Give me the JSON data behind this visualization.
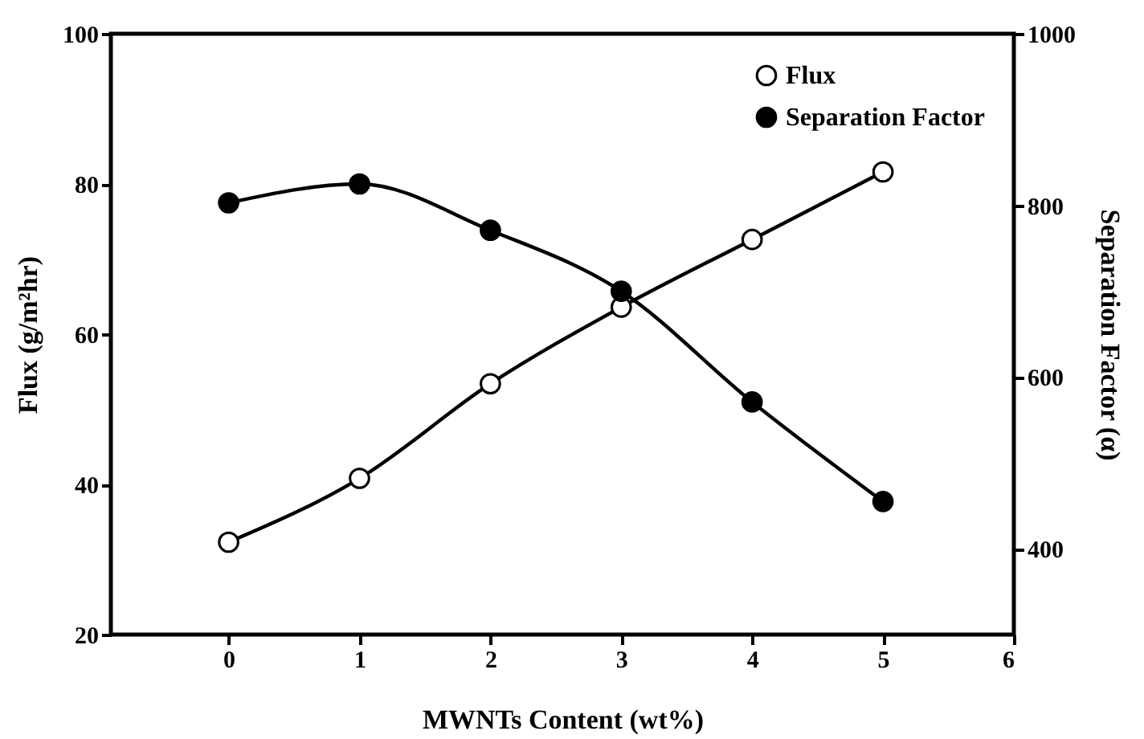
{
  "chart_data": {
    "type": "line",
    "xlabel": "MWNTs Content (wt%)",
    "ylabel": "Flux (g/m²hr)",
    "y2label": "Separation Factor (α)",
    "x": [
      0,
      1,
      2,
      3,
      4,
      5
    ],
    "series": [
      {
        "name": "Flux",
        "color": "#ffffff",
        "values": [
          32.3,
          40.8,
          53.4,
          63.6,
          72.6,
          81.6
        ]
      },
      {
        "name": "Separation Factor",
        "color": "#000000",
        "axis": "y2",
        "values": [
          803,
          825,
          771,
          700,
          571,
          455
        ]
      }
    ],
    "xlim": [
      -0.9,
      6
    ],
    "xticks": [
      0,
      1,
      2,
      3,
      4,
      5,
      6
    ],
    "ylim": [
      20,
      100
    ],
    "yticks": [
      20,
      40,
      60,
      80,
      100
    ],
    "y2lim": [
      300,
      1000
    ],
    "y2ticks": [
      400,
      600,
      800,
      1000
    ],
    "grid": false,
    "legend": "top right",
    "marker": "circle",
    "line_style": "solid"
  }
}
